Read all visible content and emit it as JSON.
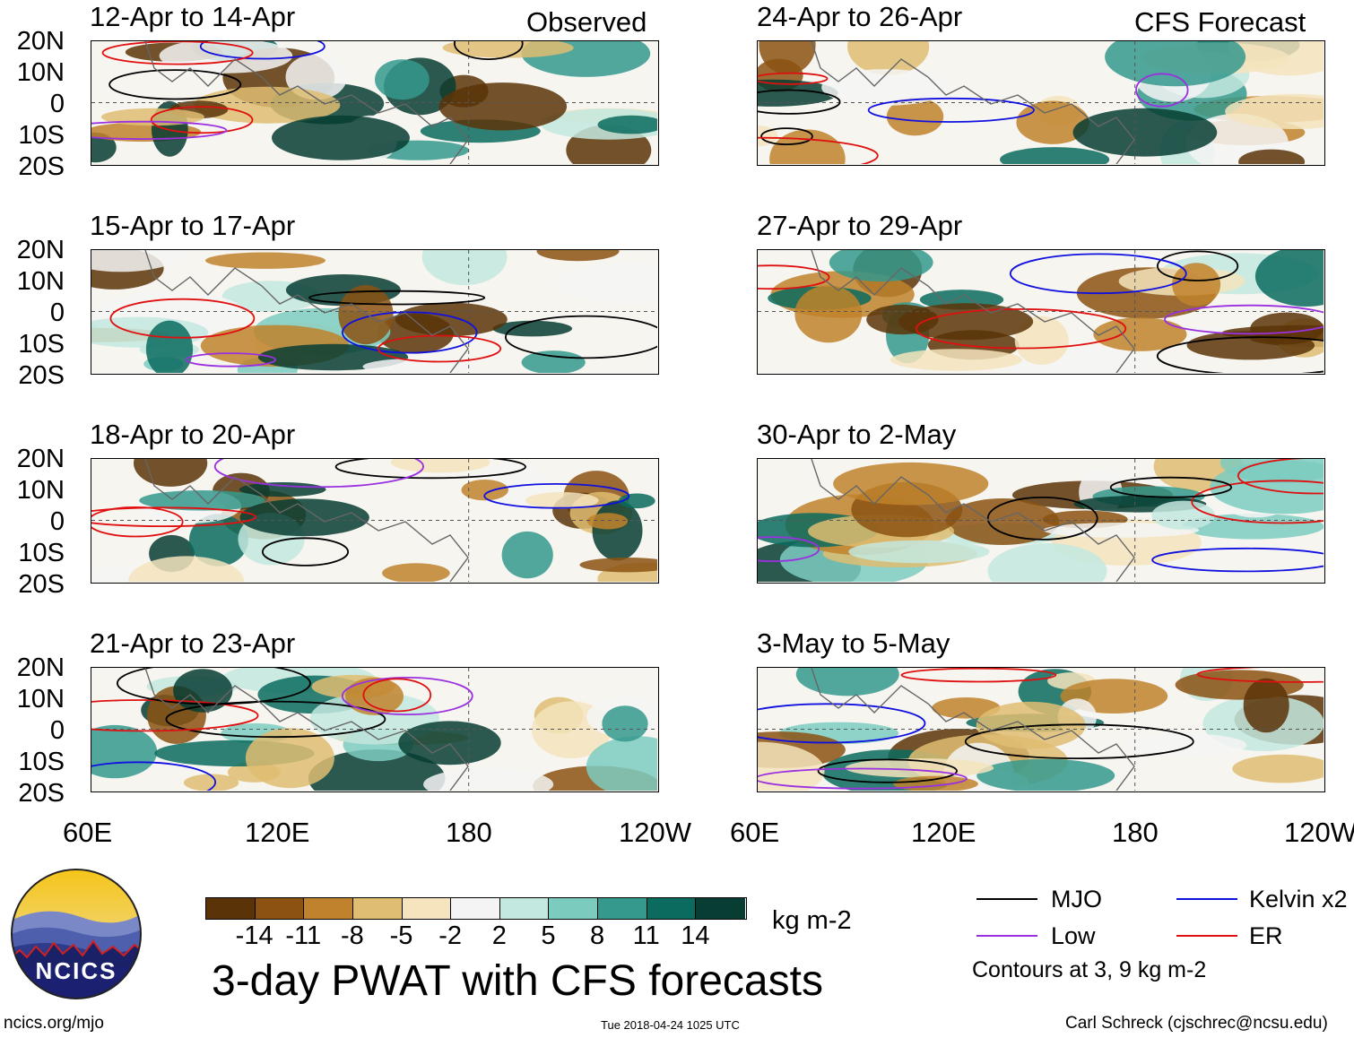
{
  "panels": [
    {
      "title": "12-Apr to 14-Apr",
      "tag": "Observed"
    },
    {
      "title": "15-Apr to 17-Apr",
      "tag": ""
    },
    {
      "title": "18-Apr to 20-Apr",
      "tag": ""
    },
    {
      "title": "21-Apr to 23-Apr",
      "tag": ""
    },
    {
      "title": "24-Apr to 26-Apr",
      "tag": "CFS Forecast"
    },
    {
      "title": "27-Apr to 29-Apr",
      "tag": ""
    },
    {
      "title": "30-Apr to 2-May",
      "tag": ""
    },
    {
      "title": "3-May to 5-May",
      "tag": ""
    }
  ],
  "lat_labels": [
    "20N",
    "10N",
    "0",
    "10S",
    "20S"
  ],
  "lon_labels": [
    "60E",
    "120E",
    "180",
    "120W"
  ],
  "colorbar": {
    "colors": [
      "#5a3408",
      "#8b5212",
      "#c0822c",
      "#dfbd72",
      "#f5e4bd",
      "#f4f4f4",
      "#c3e8df",
      "#7ccbbf",
      "#35998d",
      "#0b6b5e",
      "#073d32"
    ],
    "labels": [
      "-14",
      "-11",
      "-8",
      "-5",
      "-2",
      "2",
      "5",
      "8",
      "11",
      "14"
    ],
    "unit": "kg m-2"
  },
  "title": "3-day PWAT with CFS forecasts",
  "legend": {
    "items": [
      {
        "label": "MJO",
        "color": "#000000"
      },
      {
        "label": "Kelvin x2",
        "color": "#1010e0"
      },
      {
        "label": "Low",
        "color": "#9b30e0"
      },
      {
        "label": "ER",
        "color": "#e01010"
      }
    ],
    "note": "Contours at 3, 9 kg m-2"
  },
  "logo_text": "NCICS",
  "footer": {
    "left": "ncics.org/mjo",
    "center": "Tue 2018-04-24 1025 UTC",
    "right": "Carl Schreck (cjschrec@ncsu.edu)"
  }
}
